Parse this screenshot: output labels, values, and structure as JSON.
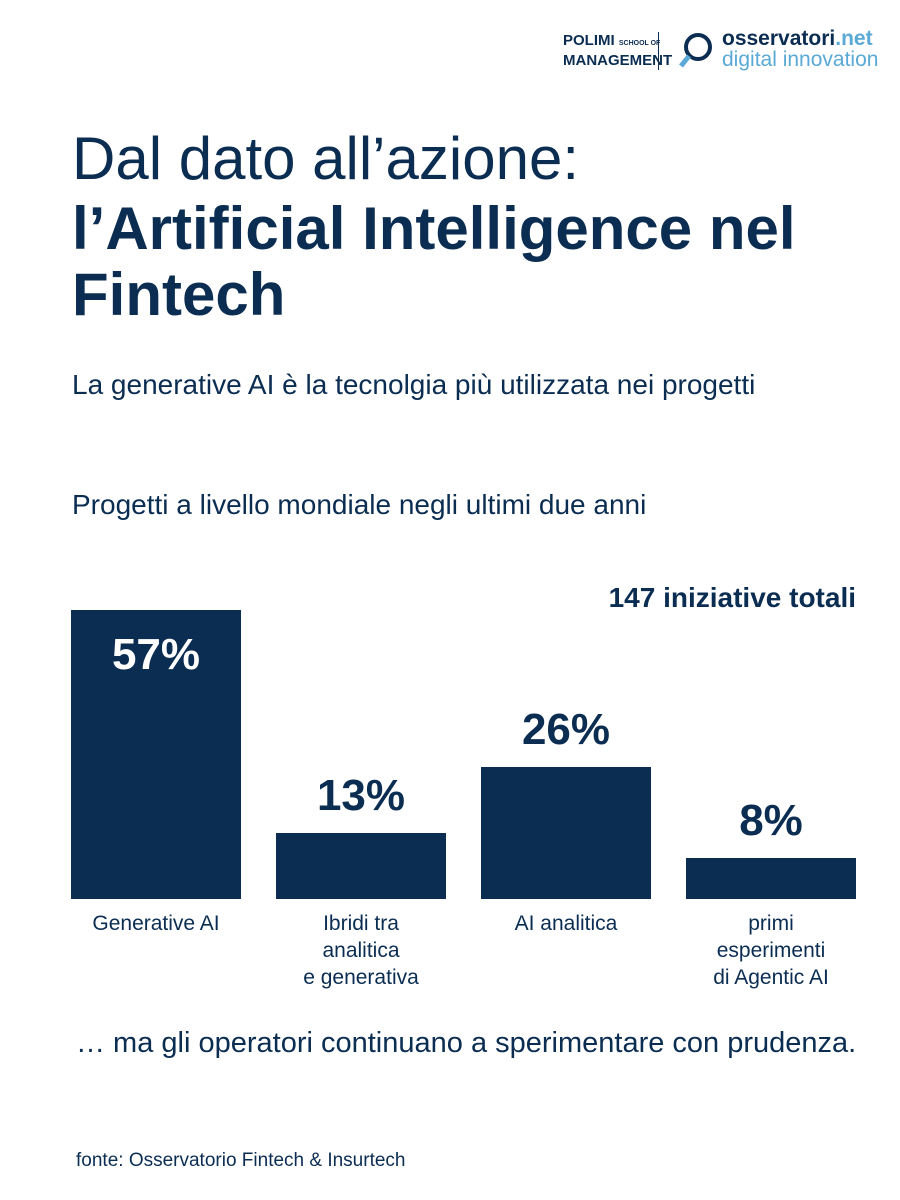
{
  "header": {
    "polimi": "POLIMI",
    "school": "SCHOOL OF",
    "management": "MANAGEMENT",
    "osservatori": "osservatori",
    "net": ".net",
    "digital": "digital innovation"
  },
  "headline": {
    "line1": "Dal dato all’azione:",
    "line2": "l’Artificial Intelligence nel Fintech"
  },
  "subtitle": "La generative AI è la tecnolgia più utilizzata nei progetti",
  "chart_data": {
    "type": "bar",
    "title": "Progetti a livello mondiale negli ultimi due anni",
    "annotation": "147 iniziative totali",
    "categories": [
      "Generative AI",
      "Ibridi tra\nanalitica\ne generativa",
      "AI analitica",
      "primi\nesperimenti\ndi Agentic AI"
    ],
    "values": [
      57,
      13,
      26,
      8
    ],
    "value_labels": [
      "57%",
      "13%",
      "26%",
      "8%"
    ],
    "color": "#0b2d52"
  },
  "conclusion": "… ma gli operatori continuano a sperimentare con prudenza.",
  "source": "fonte: Osservatorio Fintech & Insurtech"
}
